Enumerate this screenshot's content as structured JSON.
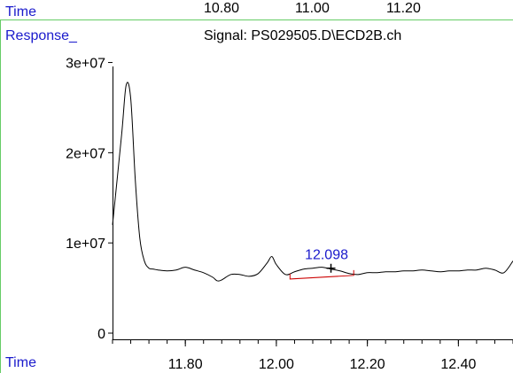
{
  "header": {
    "top_time_label": "Time",
    "top_time_ticks": [
      "10.80",
      "11.00",
      "11.20"
    ],
    "response_label": "Response_",
    "signal_label": "Signal: PS029505.D\\ECD2B.ch"
  },
  "footer": {
    "time_label": "Time"
  },
  "colors": {
    "trace": "#000000",
    "axis": "#000000",
    "label_blue": "#1a1acc",
    "baseline_red": "#cc0000",
    "frame_green": "#66cc66",
    "peak_label_blue": "#1a1acc"
  },
  "chart_data": {
    "type": "line",
    "xlabel": "Time",
    "ylabel": "Response_",
    "title": "Signal: PS029505.D\\ECD2B.ch",
    "xlim": [
      11.64,
      12.52
    ],
    "ylim": [
      0,
      33000000
    ],
    "x_ticks": [
      "11.80",
      "12.00",
      "12.20",
      "12.40"
    ],
    "x_tick_values": [
      11.8,
      12.0,
      12.2,
      12.4
    ],
    "y_ticks": [
      "0",
      "1e+07",
      "2e+07",
      "3e+07"
    ],
    "y_tick_values": [
      0,
      10000000,
      20000000,
      30000000
    ],
    "series": [
      {
        "x": [
          11.64,
          11.66,
          11.67,
          11.68,
          11.69,
          11.7,
          11.71,
          11.72,
          11.73,
          11.74,
          11.76,
          11.78,
          11.8,
          11.82,
          11.84,
          11.86,
          11.87,
          11.88,
          11.9,
          11.92,
          11.94,
          11.96,
          11.98,
          11.99,
          12.0,
          12.02,
          12.04,
          12.06,
          12.08,
          12.1,
          12.12,
          12.14,
          12.16,
          12.18,
          12.2,
          12.22,
          12.24,
          12.26,
          12.28,
          12.3,
          12.32,
          12.34,
          12.36,
          12.38,
          12.4,
          12.42,
          12.44,
          12.46,
          12.48,
          12.5,
          12.52
        ],
        "y": [
          12000000,
          22000000,
          27500000,
          26000000,
          17000000,
          10500000,
          8000000,
          7200000,
          7100000,
          7000000,
          6900000,
          7000000,
          7300000,
          7000000,
          6700000,
          6200000,
          5800000,
          5900000,
          6500000,
          6500000,
          6300000,
          6600000,
          7800000,
          8500000,
          7600000,
          6500000,
          6800000,
          7100000,
          7200000,
          7300000,
          7100000,
          6900000,
          6600000,
          6500000,
          6700000,
          6700000,
          6800000,
          6800000,
          6900000,
          6900000,
          7000000,
          6900000,
          6800000,
          6900000,
          6900000,
          7000000,
          7000000,
          7200000,
          7000000,
          6700000,
          8000000
        ]
      }
    ],
    "peak_label": "12.098",
    "peak_marker": {
      "x": 12.12,
      "y": 7200000
    },
    "baseline": {
      "x": [
        12.03,
        12.17
      ],
      "y": [
        6000000,
        6400000
      ]
    }
  }
}
